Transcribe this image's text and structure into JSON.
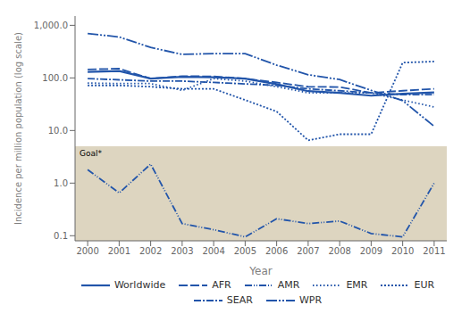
{
  "chart_data": {
    "type": "line",
    "x": [
      2000,
      2001,
      2002,
      2003,
      2004,
      2005,
      2006,
      2007,
      2008,
      2009,
      2010,
      2011
    ],
    "xlabel": "Year",
    "ylabel": "Incidence per million population (log scale)",
    "log": "y",
    "grid": false,
    "legend": "bottom",
    "xlim": [
      1999.6,
      2011.4
    ],
    "xticks": [
      2000,
      2001,
      2002,
      2003,
      2004,
      2005,
      2006,
      2007,
      2008,
      2009,
      2010,
      2011
    ],
    "ylim": [
      0.08,
      1500
    ],
    "yticks": [
      0.1,
      {
        "value": 1,
        "label": "1.0"
      },
      {
        "value": 10,
        "label": "10.0"
      },
      {
        "value": 100,
        "label": "100.0"
      },
      {
        "value": 1000,
        "label": "1,000.0"
      }
    ],
    "annotations": [
      {
        "type": "band",
        "text": "Goal*",
        "y": 5,
        "color": "#ddd5c0"
      }
    ],
    "series": [
      {
        "name": "Worldwide",
        "color": "#2255aa",
        "line_style": "solid",
        "values": [
          130,
          135,
          97,
          105,
          103,
          97,
          76,
          56,
          52,
          46,
          50,
          53
        ]
      },
      {
        "name": "AFR",
        "color": "#2255aa",
        "line_style": "dashed",
        "values": [
          145,
          150,
          97,
          108,
          107,
          97,
          82,
          68,
          67,
          52,
          57,
          62
        ]
      },
      {
        "name": "AMR",
        "color": "#2255aa",
        "line_style": "dash_dot_dot",
        "values": [
          1.8,
          0.65,
          2.3,
          0.17,
          0.13,
          0.095,
          0.21,
          0.17,
          0.19,
          0.11,
          0.095,
          1.0
        ]
      },
      {
        "name": "EMR",
        "color": "#2255aa",
        "line_style": "dotted",
        "values": [
          80,
          78,
          78,
          58,
          97,
          87,
          68,
          52,
          52,
          52,
          38,
          28
        ]
      },
      {
        "name": "EUR",
        "color": "#2255aa",
        "line_style": "short_dashed",
        "values": [
          72,
          72,
          68,
          62,
          62,
          38,
          23,
          6.5,
          8.5,
          8.5,
          195,
          205
        ]
      },
      {
        "name": "SEAR",
        "color": "#2255aa",
        "line_style": "dash_dot",
        "values": [
          97,
          92,
          87,
          87,
          82,
          77,
          72,
          62,
          57,
          52,
          48,
          48
        ]
      },
      {
        "name": "WPR",
        "color": "#2255aa",
        "line_style": "long_dash_dot_dot",
        "values": [
          700,
          600,
          380,
          280,
          290,
          290,
          175,
          115,
          93,
          58,
          37,
          12
        ]
      }
    ]
  }
}
